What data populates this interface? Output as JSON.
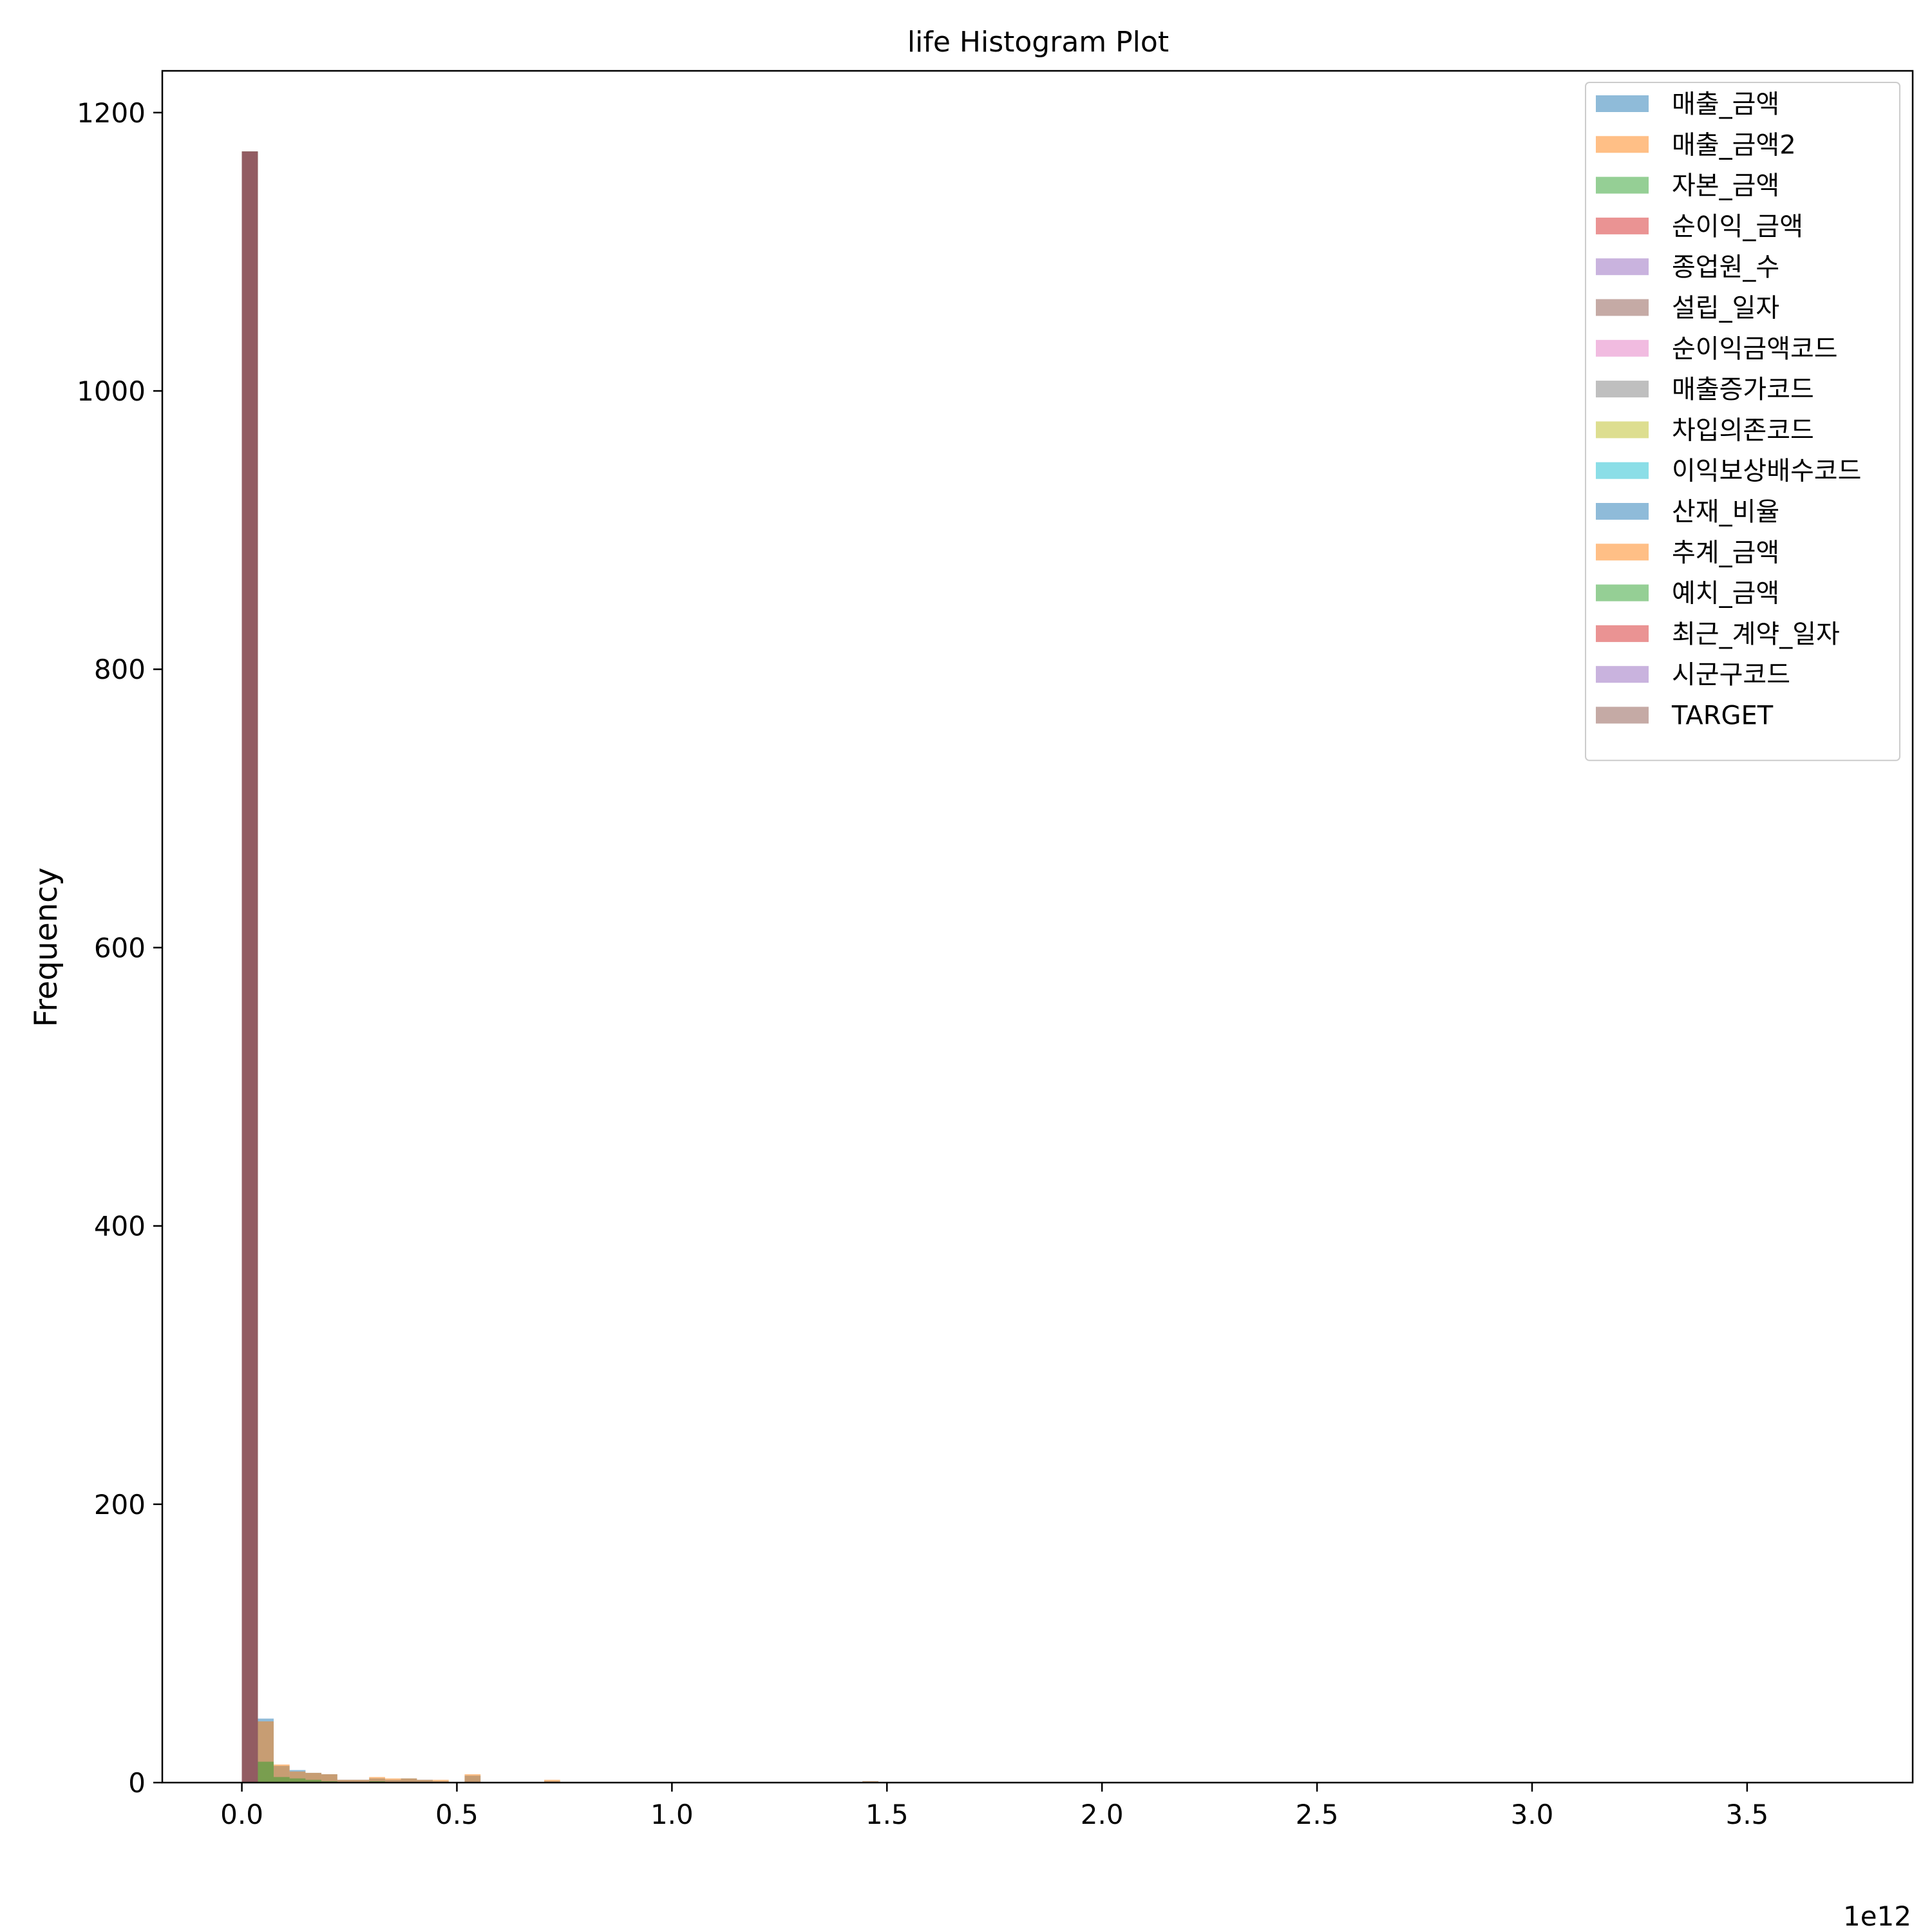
{
  "chart_data": {
    "type": "bar",
    "title": "life Histogram Plot",
    "xlabel": "",
    "ylabel": "Frequency",
    "x_offset_label": "1e12",
    "xlim": [
      -0.185,
      3.885
    ],
    "ylim": [
      0,
      1230
    ],
    "x_ticks": [
      0.0,
      0.5,
      1.0,
      1.5,
      2.0,
      2.5,
      3.0,
      3.5
    ],
    "x_tick_labels": [
      "0.0",
      "0.5",
      "1.0",
      "1.5",
      "2.0",
      "2.5",
      "3.0",
      "3.5"
    ],
    "y_ticks": [
      0,
      200,
      400,
      600,
      800,
      1000,
      1200
    ],
    "y_tick_labels": [
      "0",
      "200",
      "400",
      "600",
      "800",
      "1000",
      "1200"
    ],
    "bin_start": 0.0,
    "bin_width": 0.037,
    "bin_count": 100,
    "grid": false,
    "legend_position": "top-right",
    "bar_opacity": 0.5,
    "series": [
      {
        "name": "매출_금액",
        "color": "#1f77b4",
        "bins": [
          {
            "bin": 0,
            "count": 1172
          },
          {
            "bin": 1,
            "count": 46
          },
          {
            "bin": 2,
            "count": 12
          },
          {
            "bin": 3,
            "count": 9
          },
          {
            "bin": 4,
            "count": 7
          },
          {
            "bin": 5,
            "count": 6
          },
          {
            "bin": 6,
            "count": 2
          },
          {
            "bin": 7,
            "count": 2
          },
          {
            "bin": 8,
            "count": 3
          },
          {
            "bin": 9,
            "count": 2
          },
          {
            "bin": 10,
            "count": 3
          },
          {
            "bin": 11,
            "count": 2
          },
          {
            "bin": 12,
            "count": 1
          },
          {
            "bin": 14,
            "count": 5
          },
          {
            "bin": 19,
            "count": 1
          },
          {
            "bin": 39,
            "count": 1
          }
        ]
      },
      {
        "name": "매출_금액2",
        "color": "#ff7f0e",
        "bins": [
          {
            "bin": 0,
            "count": 1172
          },
          {
            "bin": 1,
            "count": 44
          },
          {
            "bin": 2,
            "count": 13
          },
          {
            "bin": 3,
            "count": 8
          },
          {
            "bin": 4,
            "count": 7
          },
          {
            "bin": 5,
            "count": 6
          },
          {
            "bin": 6,
            "count": 2
          },
          {
            "bin": 7,
            "count": 2
          },
          {
            "bin": 8,
            "count": 4
          },
          {
            "bin": 9,
            "count": 3
          },
          {
            "bin": 10,
            "count": 3
          },
          {
            "bin": 11,
            "count": 2
          },
          {
            "bin": 12,
            "count": 2
          },
          {
            "bin": 14,
            "count": 6
          },
          {
            "bin": 19,
            "count": 2
          },
          {
            "bin": 39,
            "count": 1
          }
        ]
      },
      {
        "name": "자본_금액",
        "color": "#2ca02c",
        "bins": [
          {
            "bin": 0,
            "count": 1172
          },
          {
            "bin": 1,
            "count": 15
          },
          {
            "bin": 2,
            "count": 4
          },
          {
            "bin": 3,
            "count": 3
          },
          {
            "bin": 4,
            "count": 2
          },
          {
            "bin": 5,
            "count": 1
          },
          {
            "bin": 8,
            "count": 1
          }
        ]
      },
      {
        "name": "순이익_금액",
        "color": "#d62728",
        "bins": [
          {
            "bin": 0,
            "count": 1172
          }
        ]
      },
      {
        "name": "종업원_수",
        "color": "#9467bd",
        "bins": [
          {
            "bin": 0,
            "count": 1172
          }
        ]
      },
      {
        "name": "설립_일자",
        "color": "#8c564b",
        "bins": [
          {
            "bin": 0,
            "count": 1172
          }
        ]
      },
      {
        "name": "순이익금액코드",
        "color": "#e377c2",
        "bins": [
          {
            "bin": 0,
            "count": 1172
          }
        ]
      },
      {
        "name": "매출증가코드",
        "color": "#7f7f7f",
        "bins": [
          {
            "bin": 0,
            "count": 1172
          }
        ]
      },
      {
        "name": "차입의존코드",
        "color": "#bcbd22",
        "bins": [
          {
            "bin": 0,
            "count": 1172
          }
        ]
      },
      {
        "name": "이익보상배수코드",
        "color": "#17becf",
        "bins": [
          {
            "bin": 0,
            "count": 1172
          }
        ]
      },
      {
        "name": "산재_비율",
        "color": "#1f77b4",
        "bins": [
          {
            "bin": 0,
            "count": 1172
          }
        ]
      },
      {
        "name": "추계_금액",
        "color": "#ff7f0e",
        "bins": [
          {
            "bin": 0,
            "count": 1172
          }
        ]
      },
      {
        "name": "예치_금액",
        "color": "#2ca02c",
        "bins": [
          {
            "bin": 0,
            "count": 1172
          }
        ]
      },
      {
        "name": "최근_계약_일자",
        "color": "#d62728",
        "bins": [
          {
            "bin": 0,
            "count": 1172
          }
        ]
      },
      {
        "name": "시군구코드",
        "color": "#9467bd",
        "bins": [
          {
            "bin": 0,
            "count": 1172
          }
        ]
      },
      {
        "name": "TARGET",
        "color": "#8c564b",
        "bins": [
          {
            "bin": 0,
            "count": 1172
          }
        ]
      }
    ]
  }
}
